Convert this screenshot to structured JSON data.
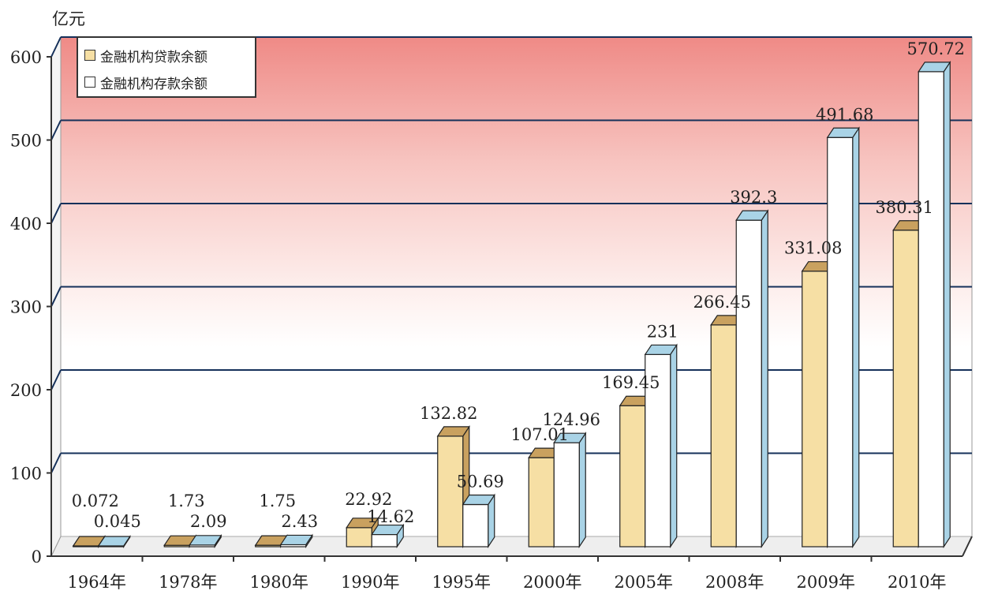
{
  "chart_data": {
    "type": "bar",
    "unit_label": "亿元",
    "categories": [
      "1964年",
      "1978年",
      "1980年",
      "1990年",
      "1995年",
      "2000年",
      "2005年",
      "2008年",
      "2009年",
      "2010年"
    ],
    "series": [
      {
        "name": "金融机构贷款余额",
        "color": "#f6dfa4",
        "side": "#c9a15f",
        "values": [
          0.072,
          1.73,
          1.75,
          22.92,
          132.82,
          107.01,
          169.45,
          266.45,
          331.08,
          380.31
        ],
        "labels": [
          "0.072",
          "1.73",
          "1.75",
          "22.92",
          "132.82",
          "107.01",
          "169.45",
          "266.45",
          "331.08",
          "380.31"
        ]
      },
      {
        "name": "金融机构存款余额",
        "color": "#ffffff",
        "side": "#a9d3e6",
        "values": [
          0.045,
          2.09,
          2.43,
          14.62,
          50.69,
          124.96,
          231,
          392.3,
          491.68,
          570.72
        ],
        "labels": [
          "0.045",
          "2.09",
          "2.43",
          "14.62",
          "50.69",
          "124.96",
          "231",
          "392.3",
          "491.68",
          "570.72"
        ]
      }
    ],
    "yticks": [
      "0",
      "100",
      "200",
      "300",
      "400",
      "500",
      "600"
    ],
    "ylim": [
      0,
      600
    ],
    "grid": true,
    "legend_position": "top-left"
  }
}
